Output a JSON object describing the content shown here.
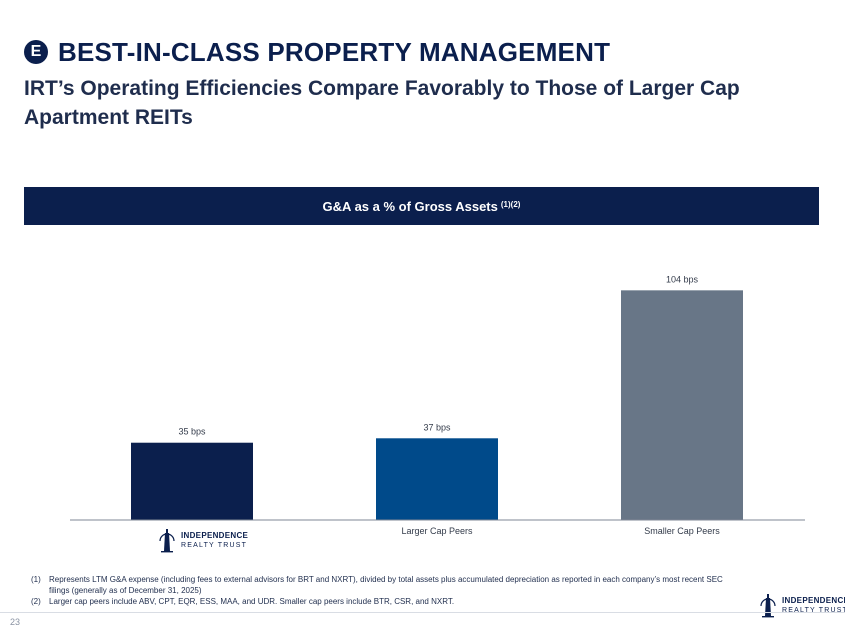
{
  "header": {
    "badge": "E",
    "title": "BEST-IN-CLASS PROPERTY MANAGEMENT",
    "subtitle": "IRT’s Operating Efficiencies Compare Favorably to Those of Larger Cap Apartment REITs"
  },
  "chart_data": {
    "type": "bar",
    "title": "G&A as a % of Gross Assets",
    "title_superscript": "(1)(2)",
    "categories": [
      "Independence Realty Trust",
      "Larger Cap Peers",
      "Smaller Cap Peers"
    ],
    "values": [
      35,
      37,
      104
    ],
    "data_labels": [
      "35 bps",
      "37 bps",
      "104 bps"
    ],
    "unit": "bps",
    "ylim": [
      0,
      120
    ],
    "colors": [
      "#0b1f4d",
      "#004a8a",
      "#687687"
    ],
    "xlabel": "",
    "ylabel": "",
    "grid": false
  },
  "logo": {
    "line1": "INDEPENDENCE",
    "line2": "REALTY TRUST"
  },
  "footnotes": [
    {
      "num": "(1)",
      "text": "Represents LTM G&A expense (including fees to external advisors for BRT and NXRT), divided by total assets plus accumulated depreciation as reported in each company’s most recent SEC filings (generally as of December 31, 2025)"
    },
    {
      "num": "(2)",
      "text": "Larger cap peers include ABV, CPT, EQR, ESS, MAA, and UDR. Smaller cap peers include BTR, CSR, and NXRT."
    }
  ],
  "footer": {
    "page_number": "23"
  },
  "colors": {
    "navy": "#0b1f4d",
    "blue": "#004a8a",
    "slate": "#687687"
  }
}
